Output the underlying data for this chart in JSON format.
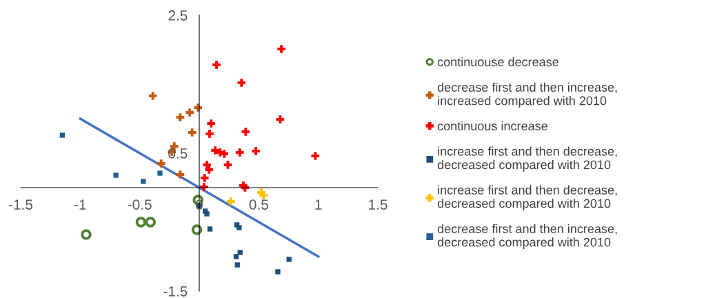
{
  "chart_data": {
    "type": "scatter",
    "xlim": [
      -1.5,
      1.5
    ],
    "xticks": [
      -1.5,
      -1,
      -0.5,
      0,
      0.5,
      1,
      1.5
    ],
    "ylim": [
      -1.5,
      2.5
    ],
    "yticks": [
      -1.5,
      0.5,
      2.5
    ],
    "grid": false,
    "legend": "right",
    "series": [
      {
        "name": "continuouse decrease",
        "color": "#538135",
        "marker": "circle",
        "x": [
          -0.95,
          -0.49,
          -0.41,
          -0.01,
          -0.02
        ],
        "values": [
          -0.68,
          -0.5,
          -0.5,
          -0.18,
          -0.61
        ]
      },
      {
        "name": "decrease first and then increase, increased compared with 2010",
        "color": "#c55a11",
        "marker": "cross",
        "x": [
          -0.39,
          -0.01,
          -0.08,
          -0.16,
          -0.06,
          -0.21,
          -0.23,
          -0.32,
          -0.16
        ],
        "values": [
          1.33,
          1.16,
          1.09,
          1.02,
          0.8,
          0.6,
          0.52,
          0.35,
          0.19
        ]
      },
      {
        "name": "continuous increase",
        "color": "#ff0000",
        "marker": "cross",
        "x": [
          0.69,
          0.145,
          0.355,
          0.68,
          0.1,
          0.087,
          0.39,
          0.134,
          0.176,
          0.21,
          0.34,
          0.475,
          0.975,
          0.064,
          0.083,
          0.24,
          0.045,
          0.04,
          0.37,
          0.385
        ],
        "values": [
          2.01,
          1.78,
          1.52,
          0.99,
          0.93,
          0.78,
          0.81,
          0.54,
          0.51,
          0.49,
          0.51,
          0.53,
          0.46,
          0.33,
          0.26,
          0.33,
          0.14,
          0.01,
          0.03,
          0.0
        ]
      },
      {
        "name": "increase first and then decrease, decreased compared with 2010",
        "color": "#1f4e79",
        "marker": "square",
        "x": [
          0.0,
          0.05,
          0.064,
          0.09,
          0.316,
          0.335,
          0.343,
          0.31,
          0.32,
          0.754,
          0.66
        ],
        "values": [
          -0.27,
          -0.34,
          -0.38,
          -0.6,
          -0.54,
          -0.58,
          -0.94,
          -1.0,
          -1.12,
          -1.04,
          -1.22
        ]
      },
      {
        "name": "increase first and then decrease, decreased compared with 2010",
        "color": "#ffc000",
        "marker": "cross",
        "x": [
          0.52,
          0.54,
          0.265
        ],
        "values": [
          -0.07,
          -0.11,
          -0.2
        ]
      },
      {
        "name": "decrease first and then increase, decreased compared with 2010",
        "color": "#255e91",
        "marker": "square",
        "x": [
          -1.15,
          -0.7,
          -0.47,
          -0.33
        ],
        "values": [
          0.76,
          0.18,
          0.09,
          0.21
        ]
      },
      {
        "type": "line",
        "color": "#4472c4",
        "marker": "none",
        "line_style": "solid",
        "x": [
          -1,
          1
        ],
        "values": [
          1,
          -1
        ]
      }
    ]
  }
}
